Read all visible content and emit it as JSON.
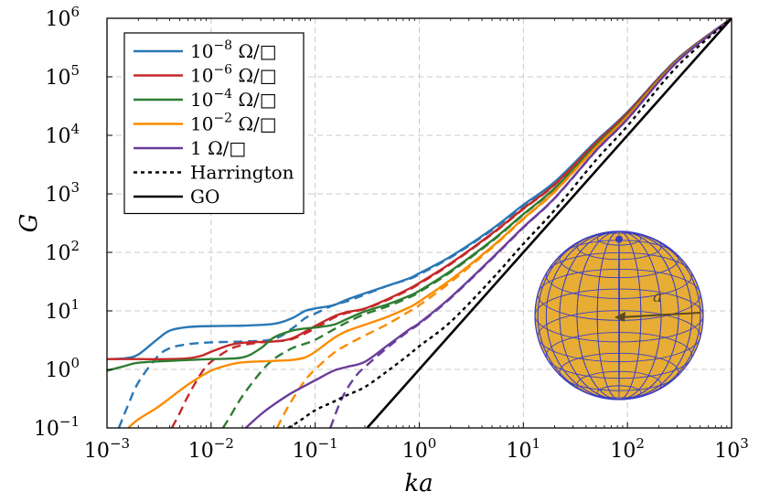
{
  "chart_data": {
    "type": "line",
    "xlabel": "ka",
    "ylabel": "G",
    "xscale": "log",
    "yscale": "log",
    "xlim": [
      0.001,
      1000
    ],
    "ylim": [
      0.1,
      1000000
    ],
    "grid": true,
    "legend_placement": "top-left",
    "x_ticks": [
      {
        "base": "10",
        "exp": "−3"
      },
      {
        "base": "10",
        "exp": "−2"
      },
      {
        "base": "10",
        "exp": "−1"
      },
      {
        "base": "10",
        "exp": "0"
      },
      {
        "base": "10",
        "exp": "1"
      },
      {
        "base": "10",
        "exp": "2"
      },
      {
        "base": "10",
        "exp": "3"
      }
    ],
    "y_ticks": [
      {
        "base": "10",
        "exp": "−1"
      },
      {
        "base": "10",
        "exp": "0"
      },
      {
        "base": "10",
        "exp": "1"
      },
      {
        "base": "10",
        "exp": "2"
      },
      {
        "base": "10",
        "exp": "3"
      },
      {
        "base": "10",
        "exp": "4"
      },
      {
        "base": "10",
        "exp": "5"
      },
      {
        "base": "10",
        "exp": "6"
      }
    ],
    "series": [
      {
        "name": "10^{-8} Ω/□",
        "label_base": "10",
        "label_exp": "−8",
        "label_unit": " Ω/□",
        "color": "#2a77b4",
        "dash": "solid",
        "x": [
          0.001,
          0.0015,
          0.002,
          0.003,
          0.004,
          0.006,
          0.01,
          0.02,
          0.04,
          0.06,
          0.08,
          0.1,
          0.15,
          0.2,
          0.3,
          0.5,
          0.8,
          1,
          2,
          5,
          10,
          20,
          50,
          100,
          300,
          1000
        ],
        "y": [
          1.5,
          1.55,
          1.8,
          3.2,
          4.6,
          5.3,
          5.5,
          5.6,
          6.0,
          7.5,
          10,
          11,
          12.5,
          15.5,
          20,
          27,
          36,
          44,
          85,
          250,
          650,
          1600,
          8000,
          25000,
          200000,
          1000000
        ]
      },
      {
        "name": "10^{-8} Ω/□ (dashed)",
        "color": "#2a77b4",
        "dash": "dashed",
        "x": [
          0.0013,
          0.0016,
          0.002,
          0.003,
          0.004,
          0.006,
          0.01,
          0.02,
          0.04,
          0.06,
          0.08,
          0.1,
          0.15,
          0.2,
          0.3,
          0.5,
          0.8,
          1,
          2,
          5,
          10,
          20,
          50,
          100,
          300,
          1000
        ],
        "y": [
          0.1,
          0.25,
          0.6,
          1.6,
          2.3,
          2.7,
          2.9,
          3.0,
          3.3,
          5.0,
          7.5,
          9.0,
          12.5,
          14.5,
          19,
          27,
          35,
          42,
          82,
          240,
          620,
          1550,
          7800,
          25000,
          200000,
          1000000
        ]
      },
      {
        "name": "10^{-6} Ω/□",
        "label_base": "10",
        "label_exp": "−6",
        "label_unit": " Ω/□",
        "color": "#c62828",
        "dash": "solid",
        "x": [
          0.001,
          0.002,
          0.004,
          0.006,
          0.008,
          0.01,
          0.015,
          0.02,
          0.03,
          0.04,
          0.06,
          0.1,
          0.15,
          0.2,
          0.3,
          0.5,
          0.8,
          1,
          2,
          5,
          10,
          20,
          50,
          100,
          300,
          1000
        ],
        "y": [
          1.5,
          1.5,
          1.5,
          1.55,
          1.7,
          2.0,
          2.6,
          2.85,
          2.95,
          3.0,
          3.4,
          5.5,
          8.0,
          9.5,
          11,
          16,
          24,
          30,
          65,
          210,
          560,
          1450,
          7500,
          24000,
          195000,
          1000000
        ]
      },
      {
        "name": "10^{-6} Ω/□ (dashed)",
        "color": "#c62828",
        "dash": "dashed",
        "x": [
          0.0042,
          0.005,
          0.006,
          0.008,
          0.01,
          0.015,
          0.02,
          0.03,
          0.04,
          0.06,
          0.1,
          0.15,
          0.2,
          0.3,
          0.5,
          0.8,
          1,
          2,
          5,
          10,
          20,
          50,
          100,
          300,
          1000
        ],
        "y": [
          0.1,
          0.18,
          0.35,
          0.85,
          1.35,
          2.2,
          2.6,
          2.9,
          3.0,
          3.3,
          5.0,
          7.6,
          9.2,
          10.8,
          15.5,
          23,
          29,
          63,
          205,
          550,
          1430,
          7400,
          24000,
          195000,
          1000000
        ]
      },
      {
        "name": "10^{-4} Ω/□",
        "label_base": "10",
        "label_exp": "−4",
        "label_unit": " Ω/□",
        "color": "#2e7d32",
        "dash": "solid",
        "x": [
          0.001,
          0.0015,
          0.002,
          0.004,
          0.006,
          0.01,
          0.02,
          0.03,
          0.04,
          0.06,
          0.08,
          0.1,
          0.15,
          0.2,
          0.3,
          0.5,
          0.8,
          1,
          2,
          5,
          10,
          20,
          50,
          100,
          300,
          1000
        ],
        "y": [
          0.95,
          1.15,
          1.3,
          1.4,
          1.45,
          1.5,
          1.6,
          2.3,
          3.5,
          4.6,
          5.0,
          5.2,
          5.8,
          7.2,
          9.8,
          13,
          18,
          22,
          48,
          160,
          450,
          1250,
          6800,
          22000,
          190000,
          1000000
        ]
      },
      {
        "name": "10^{-4} Ω/□ (dashed)",
        "color": "#2e7d32",
        "dash": "dashed",
        "x": [
          0.013,
          0.015,
          0.02,
          0.03,
          0.04,
          0.06,
          0.08,
          0.1,
          0.15,
          0.2,
          0.3,
          0.5,
          0.8,
          1,
          2,
          5,
          10,
          20,
          50,
          100,
          300,
          1000
        ],
        "y": [
          0.1,
          0.15,
          0.35,
          0.9,
          1.5,
          2.3,
          2.75,
          3.2,
          4.8,
          6.3,
          8.8,
          12,
          17,
          21,
          46,
          155,
          440,
          1230,
          6700,
          22000,
          190000,
          1000000
        ]
      },
      {
        "name": "10^{-2} Ω/□",
        "label_base": "10",
        "label_exp": "−2",
        "label_unit": " Ω/□",
        "color": "#fb8c00",
        "dash": "solid",
        "x": [
          0.0016,
          0.002,
          0.003,
          0.004,
          0.006,
          0.01,
          0.015,
          0.02,
          0.04,
          0.06,
          0.08,
          0.1,
          0.15,
          0.2,
          0.3,
          0.5,
          0.8,
          1,
          2,
          5,
          10,
          20,
          50,
          100,
          300,
          1000
        ],
        "y": [
          0.1,
          0.14,
          0.22,
          0.32,
          0.55,
          0.95,
          1.2,
          1.32,
          1.4,
          1.45,
          1.6,
          2.0,
          3.4,
          4.5,
          5.8,
          8.0,
          11.5,
          14.5,
          34,
          125,
          380,
          1100,
          6300,
          21000,
          185000,
          1000000
        ]
      },
      {
        "name": "10^{-2} Ω/□ (dashed)",
        "color": "#fb8c00",
        "dash": "dashed",
        "x": [
          0.043,
          0.05,
          0.06,
          0.08,
          0.1,
          0.15,
          0.2,
          0.3,
          0.5,
          0.8,
          1,
          2,
          5,
          10,
          20,
          50,
          100,
          300,
          1000
        ],
        "y": [
          0.1,
          0.17,
          0.3,
          0.65,
          1.0,
          1.9,
          2.6,
          3.8,
          6.0,
          9.8,
          12.5,
          31,
          120,
          370,
          1080,
          6200,
          21000,
          185000,
          1000000
        ]
      },
      {
        "name": "1 Ω/□",
        "label_base": "1",
        "label_exp": "",
        "label_unit": " Ω/□",
        "color": "#6a3d9a",
        "dash": "solid",
        "x": [
          0.0215,
          0.03,
          0.04,
          0.06,
          0.1,
          0.15,
          0.2,
          0.3,
          0.5,
          0.8,
          1,
          2,
          5,
          10,
          20,
          50,
          100,
          300,
          1000
        ],
        "y": [
          0.1,
          0.17,
          0.25,
          0.4,
          0.65,
          0.95,
          1.1,
          1.35,
          2.6,
          4.8,
          6.2,
          17,
          80,
          270,
          850,
          5500,
          19000,
          180000,
          1000000
        ]
      },
      {
        "name": "1 Ω/□ (dashed)",
        "color": "#6a3d9a",
        "dash": "dashed",
        "x": [
          0.14,
          0.15,
          0.17,
          0.2,
          0.25,
          0.3,
          0.5,
          0.8,
          1,
          2,
          5,
          10,
          20,
          50,
          100,
          300,
          1000
        ],
        "y": [
          0.1,
          0.14,
          0.25,
          0.45,
          0.8,
          1.1,
          2.4,
          4.6,
          6.0,
          16.5,
          78,
          265,
          840,
          5450,
          19000,
          180000,
          1000000
        ]
      },
      {
        "name": "Harrington",
        "label_base": "Harrington",
        "label_exp": "",
        "label_unit": "",
        "color": "#000000",
        "dash": "dotted",
        "x": [
          0.055,
          0.07,
          0.1,
          0.15,
          0.2,
          0.3,
          0.5,
          0.8,
          1,
          2,
          5,
          10,
          20,
          50,
          100,
          300,
          1000
        ],
        "y": [
          0.1,
          0.13,
          0.2,
          0.28,
          0.36,
          0.5,
          0.95,
          1.8,
          2.5,
          6.5,
          35,
          140,
          530,
          3800,
          14500,
          150000,
          1000000
        ]
      },
      {
        "name": "GO",
        "label_base": "GO",
        "label_exp": "",
        "label_unit": "",
        "color": "#000000",
        "dash": "solid",
        "x": [
          0.316,
          1000
        ],
        "y": [
          0.1,
          1000000
        ]
      }
    ]
  },
  "inset": {
    "sphere_fill": "#e8ad35",
    "mesh_color": "#3a3fc4",
    "label": "a"
  }
}
